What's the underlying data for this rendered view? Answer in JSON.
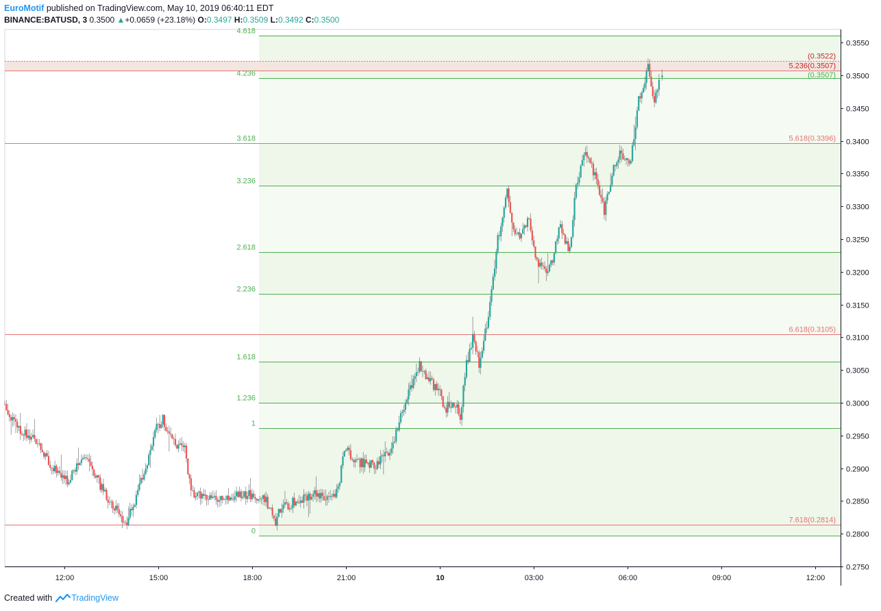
{
  "header": {
    "brand": "EuroMotif",
    "published_text": "published on TradingView.com, May 10, 2019 06:40:11 EDT",
    "symbol": "BINANCE:BATUSD, 3",
    "last": "0.3500",
    "change": "+0.0659 (+23.18%)",
    "open_label": "O:",
    "open": "0.3497",
    "high_label": "H:",
    "high": "0.3509",
    "low_label": "L:",
    "low": "0.3492",
    "close_label": "C:",
    "close": "0.3500"
  },
  "footer": {
    "created_text": "Created with",
    "logo_text": "TradingView"
  },
  "colors": {
    "up": "#26a69a",
    "down": "#ef5350",
    "fib_green": "#4caf50",
    "fib_red": "#e57373",
    "zone_red": "#f3e5e0",
    "zone_green": "#eef7ea"
  },
  "chart_data": {
    "type": "candlestick",
    "y_axis": {
      "min": 0.275,
      "max": 0.357,
      "ticks": [
        "0.3550",
        "0.3500",
        "0.3450",
        "0.3400",
        "0.3350",
        "0.3300",
        "0.3250",
        "0.3200",
        "0.3150",
        "0.3100",
        "0.3050",
        "0.3000",
        "0.2950",
        "0.2900",
        "0.2850",
        "0.2800",
        "0.2750"
      ],
      "tick_values": [
        0.355,
        0.35,
        0.345,
        0.34,
        0.335,
        0.33,
        0.325,
        0.32,
        0.315,
        0.31,
        0.305,
        0.3,
        0.295,
        0.29,
        0.285,
        0.28,
        0.275
      ]
    },
    "x_axis": {
      "min_hour": 10.1,
      "max_hour": 36.8,
      "ticks": [
        {
          "hour": 12,
          "label": "12:00",
          "bold": false
        },
        {
          "hour": 15,
          "label": "15:00",
          "bold": false
        },
        {
          "hour": 18,
          "label": "18:00",
          "bold": false
        },
        {
          "hour": 21,
          "label": "21:00",
          "bold": false
        },
        {
          "hour": 24,
          "label": "10",
          "bold": true
        },
        {
          "hour": 27,
          "label": "03:00",
          "bold": false
        },
        {
          "hour": 30,
          "label": "06:00",
          "bold": false
        },
        {
          "hour": 33,
          "label": "09:00",
          "bold": false
        },
        {
          "hour": 36,
          "label": "12:00",
          "bold": false
        }
      ]
    },
    "fib_extension_levels": [
      {
        "label": "4.618",
        "price": 0.3561
      },
      {
        "label": "4.236",
        "price": 0.3496
      },
      {
        "label": "3.618",
        "price": 0.3396
      },
      {
        "label": "3.236",
        "price": 0.3332
      },
      {
        "label": "2.618",
        "price": 0.323
      },
      {
        "label": "2.236",
        "price": 0.3166
      },
      {
        "label": "1.618",
        "price": 0.3063
      },
      {
        "label": "1.236",
        "price": 0.3
      },
      {
        "label": "1",
        "price": 0.2961
      },
      {
        "label": "0",
        "price": 0.2797
      }
    ],
    "fib_extension_price_labels": [
      {
        "price": 0.3496,
        "text": "(0.3507)"
      }
    ],
    "fib_retracement_levels": [
      {
        "label": "5.236",
        "price": 0.3507,
        "text": "(0.3507)"
      },
      {
        "label": "",
        "price": 0.3522,
        "text": "(0.3522)"
      },
      {
        "label": "5.618",
        "price": 0.3396,
        "text": "(0.3396)"
      },
      {
        "label": "6.618",
        "price": 0.3105,
        "text": "(0.3105)"
      },
      {
        "label": "7.618",
        "price": 0.2814,
        "text": "(0.2814)"
      }
    ],
    "candle_path": [
      [
        10.1,
        0.2998
      ],
      [
        10.6,
        0.296
      ],
      [
        11.0,
        0.295
      ],
      [
        11.4,
        0.292
      ],
      [
        11.8,
        0.2895
      ],
      [
        12.2,
        0.2878
      ],
      [
        12.6,
        0.292
      ],
      [
        13.0,
        0.2895
      ],
      [
        13.4,
        0.2855
      ],
      [
        13.8,
        0.283
      ],
      [
        14.0,
        0.2815
      ],
      [
        14.4,
        0.286
      ],
      [
        14.8,
        0.293
      ],
      [
        15.0,
        0.296
      ],
      [
        15.2,
        0.2975
      ],
      [
        15.5,
        0.294
      ],
      [
        15.9,
        0.293
      ],
      [
        16.1,
        0.286
      ],
      [
        16.5,
        0.286
      ],
      [
        17.0,
        0.285
      ],
      [
        17.5,
        0.286
      ],
      [
        18.0,
        0.286
      ],
      [
        18.5,
        0.285
      ],
      [
        18.8,
        0.282
      ],
      [
        19.0,
        0.284
      ],
      [
        19.5,
        0.285
      ],
      [
        20.0,
        0.286
      ],
      [
        20.5,
        0.285
      ],
      [
        20.8,
        0.287
      ],
      [
        21.0,
        0.293
      ],
      [
        21.4,
        0.291
      ],
      [
        22.0,
        0.2905
      ],
      [
        22.5,
        0.293
      ],
      [
        23.0,
        0.301
      ],
      [
        23.4,
        0.306
      ],
      [
        23.6,
        0.304
      ],
      [
        24.0,
        0.302
      ],
      [
        24.2,
        0.299
      ],
      [
        24.5,
        0.3
      ],
      [
        24.7,
        0.298
      ],
      [
        24.9,
        0.306
      ],
      [
        25.1,
        0.31
      ],
      [
        25.3,
        0.306
      ],
      [
        25.6,
        0.313
      ],
      [
        25.9,
        0.325
      ],
      [
        26.2,
        0.332
      ],
      [
        26.4,
        0.327
      ],
      [
        26.6,
        0.325
      ],
      [
        26.9,
        0.328
      ],
      [
        27.1,
        0.322
      ],
      [
        27.4,
        0.32
      ],
      [
        27.6,
        0.321
      ],
      [
        27.9,
        0.327
      ],
      [
        28.2,
        0.323
      ],
      [
        28.4,
        0.333
      ],
      [
        28.7,
        0.338
      ],
      [
        29.0,
        0.335
      ],
      [
        29.3,
        0.329
      ],
      [
        29.6,
        0.336
      ],
      [
        29.8,
        0.338
      ],
      [
        30.1,
        0.336
      ],
      [
        30.4,
        0.346
      ],
      [
        30.7,
        0.351
      ],
      [
        30.9,
        0.346
      ],
      [
        31.1,
        0.35
      ]
    ],
    "last_candle": {
      "open": 0.3497,
      "high": 0.3509,
      "low": 0.3492,
      "close": 0.35
    }
  }
}
